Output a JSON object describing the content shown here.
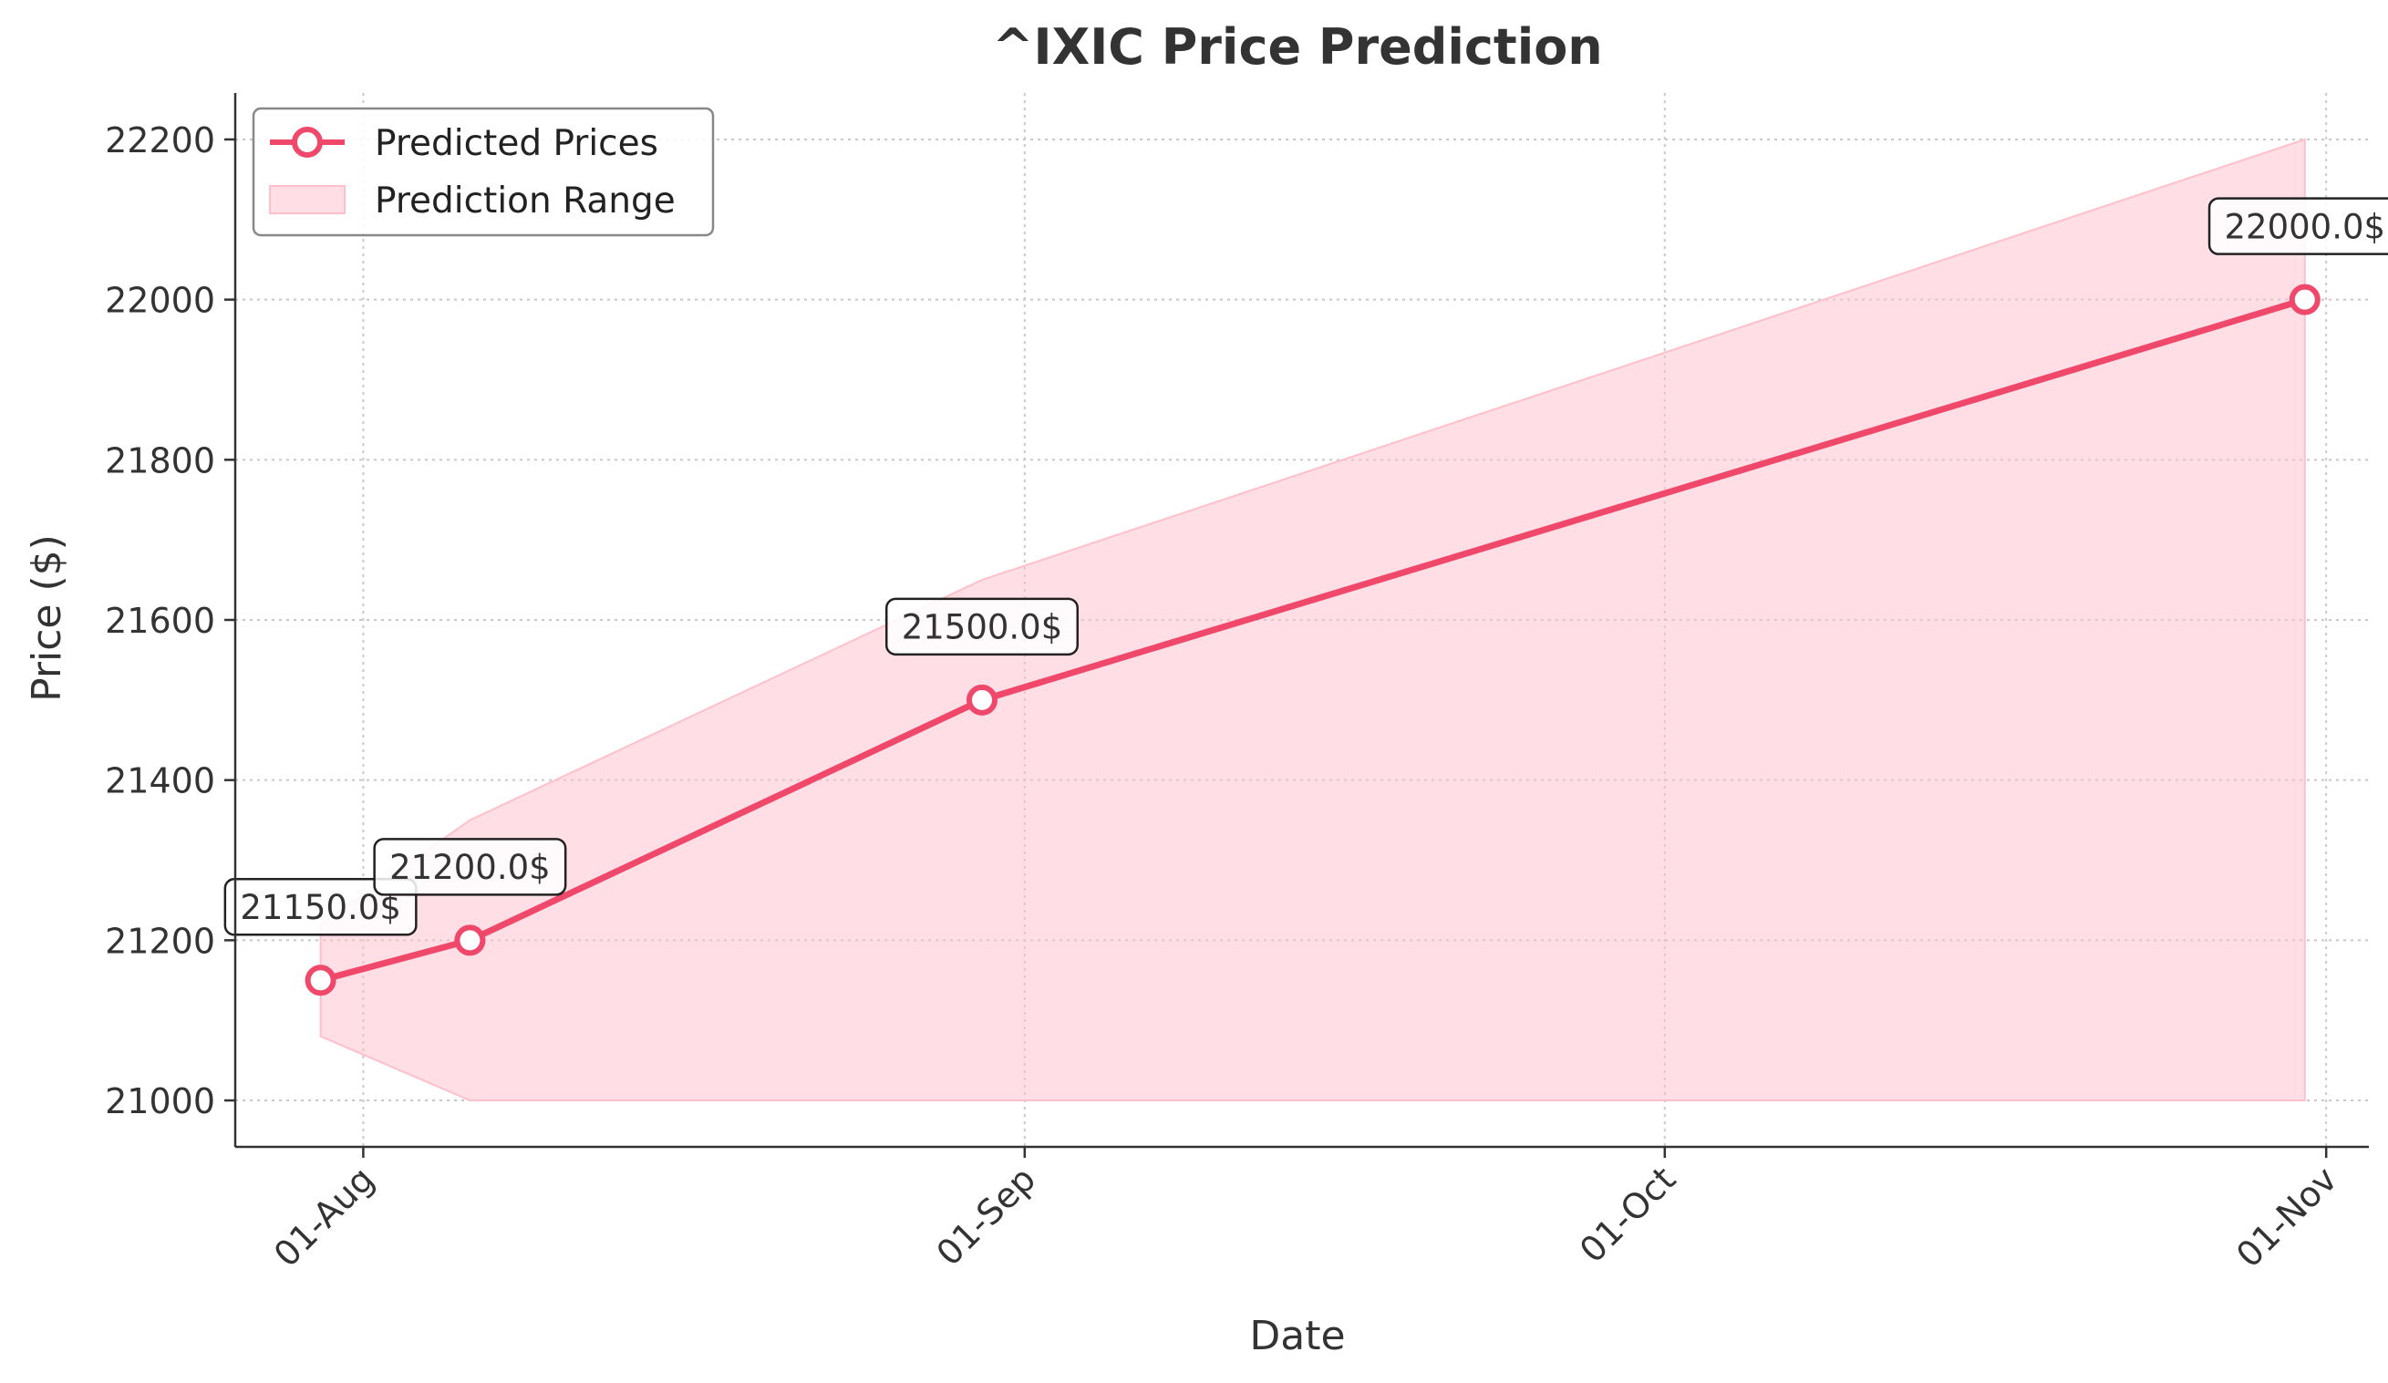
{
  "chart_data": {
    "type": "line",
    "title": "^IXIC Price Prediction",
    "xlabel": "Date",
    "ylabel": "Price ($)",
    "x": [
      "2025-07-30",
      "2025-08-06",
      "2025-08-30",
      "2025-10-31"
    ],
    "series": [
      {
        "name": "Predicted Prices",
        "values": [
          21150.0,
          21200.0,
          21500.0,
          22000.0
        ],
        "color": "#f0486a"
      }
    ],
    "range": {
      "name": "Prediction Range",
      "x": [
        "2025-07-30",
        "2025-08-06",
        "2025-08-30",
        "2025-10-31"
      ],
      "lower": [
        21080,
        21000,
        21000,
        21000
      ],
      "upper": [
        21220,
        21350,
        21650,
        22200
      ],
      "color": "#ffc0cb"
    },
    "data_labels": [
      "21150.0$",
      "21200.0$",
      "21500.0$",
      "22000.0$"
    ],
    "yticks": [
      21000,
      21200,
      21400,
      21600,
      21800,
      22000,
      22200
    ],
    "xticks": [
      {
        "date": "2025-08-01",
        "label": "01-Aug"
      },
      {
        "date": "2025-09-01",
        "label": "01-Sep"
      },
      {
        "date": "2025-10-01",
        "label": "01-Oct"
      },
      {
        "date": "2025-11-01",
        "label": "01-Nov"
      }
    ],
    "xlim": [
      "2025-07-26",
      "2025-11-03"
    ],
    "ylim": [
      20942,
      22258
    ],
    "grid": true,
    "legend": "top-left"
  }
}
